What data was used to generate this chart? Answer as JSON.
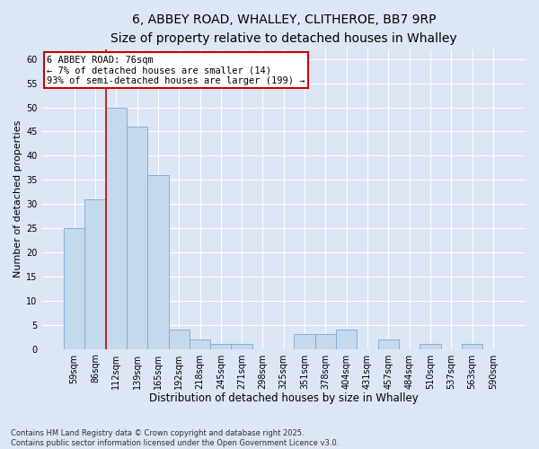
{
  "title1": "6, ABBEY ROAD, WHALLEY, CLITHEROE, BB7 9RP",
  "title2": "Size of property relative to detached houses in Whalley",
  "xlabel": "Distribution of detached houses by size in Whalley",
  "ylabel": "Number of detached properties",
  "categories": [
    "59sqm",
    "86sqm",
    "112sqm",
    "139sqm",
    "165sqm",
    "192sqm",
    "218sqm",
    "245sqm",
    "271sqm",
    "298sqm",
    "325sqm",
    "351sqm",
    "378sqm",
    "404sqm",
    "431sqm",
    "457sqm",
    "484sqm",
    "510sqm",
    "537sqm",
    "563sqm",
    "590sqm"
  ],
  "values": [
    25,
    31,
    50,
    46,
    36,
    4,
    2,
    1,
    1,
    0,
    0,
    3,
    3,
    4,
    0,
    2,
    0,
    1,
    0,
    1,
    0
  ],
  "bar_color": "#c5d9ed",
  "bar_edge_color": "#7aa8d0",
  "annotation_title": "6 ABBEY ROAD: 76sqm",
  "annotation_line1": "← 7% of detached houses are smaller (14)",
  "annotation_line2": "93% of semi-detached houses are larger (199) →",
  "red_line_x": 1.5,
  "ylim": [
    0,
    62
  ],
  "yticks": [
    0,
    5,
    10,
    15,
    20,
    25,
    30,
    35,
    40,
    45,
    50,
    55,
    60
  ],
  "fig_bg_color": "#dce6f5",
  "plot_bg_color": "#dce6f5",
  "grid_color": "#ffffff",
  "footer_line1": "Contains HM Land Registry data © Crown copyright and database right 2025.",
  "footer_line2": "Contains public sector information licensed under the Open Government Licence v3.0.",
  "annotation_box_color": "#ffffff",
  "annotation_box_edge": "#cc0000",
  "red_line_color": "#cc0000",
  "title1_fontsize": 10,
  "title2_fontsize": 9,
  "tick_fontsize": 7,
  "xlabel_fontsize": 8.5,
  "ylabel_fontsize": 8,
  "annotation_fontsize": 7.5,
  "footer_fontsize": 6
}
